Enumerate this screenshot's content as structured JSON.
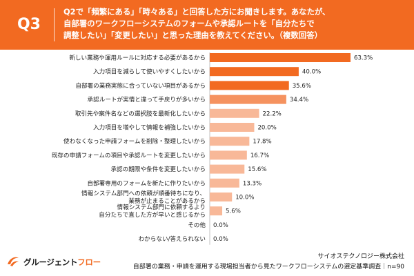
{
  "header": {
    "q_number": "Q3",
    "question_lines": [
      "Q2で「頻繁にある」「時々ある」と回答した方にお聞きします。あなたが、",
      "自部署のワークフローシステムのフォームや承認ルートを「自分たちで",
      "調整したい」「変更したい」と思った理由を教えてください。（複数回答）"
    ],
    "bg_color": "#f26a21"
  },
  "chart_data": {
    "type": "bar",
    "orientation": "horizontal",
    "categories": [
      "新しい業務や運用ルールに対応する必要があるから",
      "入力項目を減らして使いやすくしたいから",
      "自部署の業務実態に合っていない項目があるから",
      "承認ルートが実情と違って手戻りが多いから",
      "取引先や案件名などの選択肢を最新化したいから",
      "入力項目を増やして情報を補強したいから",
      "使わなくなった申請フォームを削除・整理したいから",
      "既存の申請フォームの項目や承認ルートを変更したいから",
      "承認の期限や条件を変更したいから",
      "自部署専用のフォームを新たに作りたいから",
      "情報システム部門への依頼が順番待ちになり、\n業務が止まることがあるから",
      "情報システム部門に依頼するより\n自分たちで直した方が早いと感じるから",
      "その他",
      "わからない/答えられない"
    ],
    "values": [
      63.3,
      40.0,
      35.6,
      34.4,
      22.2,
      20.0,
      17.8,
      16.7,
      15.6,
      13.3,
      10.0,
      5.6,
      0.0,
      0.0
    ],
    "value_labels": [
      "63.3%",
      "40.0%",
      "35.6%",
      "34.4%",
      "22.2%",
      "20.0%",
      "17.8%",
      "16.7%",
      "15.6%",
      "13.3%",
      "10.0%",
      "5.6%",
      "0.0%",
      "0.0%"
    ],
    "colors": {
      "dark": "#f26a21",
      "medium": "#f5925f",
      "light": "#f8b898"
    },
    "color_groups": [
      "dark",
      "dark",
      "dark",
      "medium",
      "light",
      "light",
      "light",
      "light",
      "light",
      "light",
      "light",
      "light",
      "light",
      "light"
    ],
    "xlim": [
      0,
      70
    ],
    "grid": false
  },
  "footer": {
    "company": "サイオステクノロジー株式会社",
    "survey": "自部署の業務・申請を運用する現場担当者から見たワークフローシステムの選定基準調査｜n=90"
  },
  "logo": {
    "text_black": "グルージェント",
    "text_orange": "フロー",
    "icon": "swoosh-logo-icon",
    "color": "#f26a21"
  }
}
